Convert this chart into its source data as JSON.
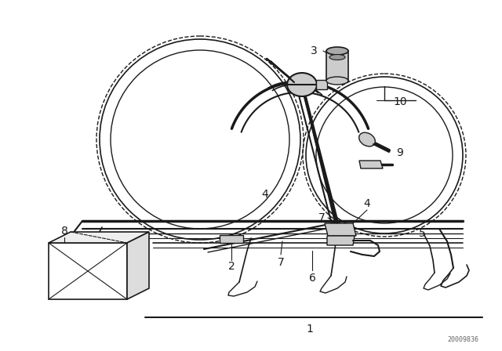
{
  "bg_color": "#ffffff",
  "fig_width": 6.4,
  "fig_height": 4.48,
  "dpi": 100,
  "watermark": "20009836",
  "line_color": "#1a1a1a",
  "gray": "#888888",
  "light_gray": "#cccccc",
  "white": "#ffffff"
}
